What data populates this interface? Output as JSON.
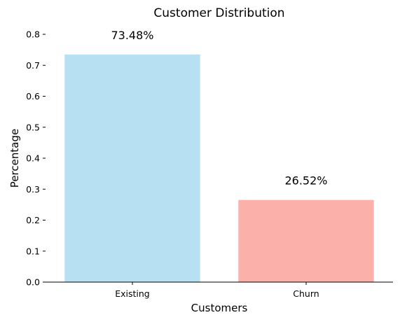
{
  "chart_data": {
    "type": "bar",
    "title": "Customer Distribution",
    "xlabel": "Customers",
    "ylabel": "Percentage",
    "categories": [
      "Existing",
      "Churn"
    ],
    "values": [
      0.7348,
      0.2652
    ],
    "data_labels": [
      "73.48%",
      "26.52%"
    ],
    "colors": [
      "#b7e0f2",
      "#fbb0aa"
    ],
    "ylim": [
      0,
      0.8
    ],
    "yticks": [
      0.0,
      0.1,
      0.2,
      0.3,
      0.4,
      0.5,
      0.6,
      0.7,
      0.8
    ],
    "ytick_labels": [
      "0.0",
      "0.1",
      "0.2",
      "0.3",
      "0.4",
      "0.5",
      "0.6",
      "0.7",
      "0.8"
    ],
    "grid": false,
    "legend": "none"
  }
}
